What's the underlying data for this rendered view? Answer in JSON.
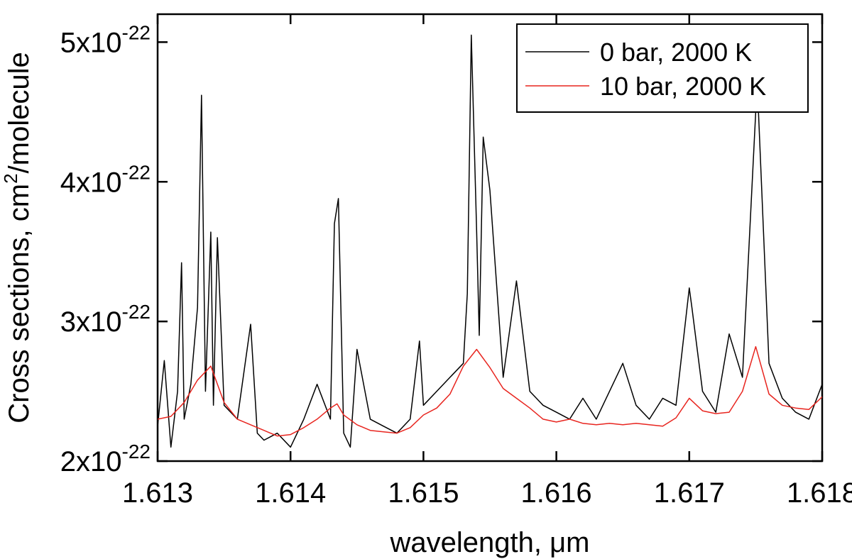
{
  "chart_data": {
    "type": "line",
    "xlabel": "wavelength, μm",
    "ylabel_parts": [
      "Cross sections, cm",
      "2",
      "/molecule"
    ],
    "xlim": [
      1.613,
      1.618
    ],
    "ylim": [
      2e-22,
      5.2e-22
    ],
    "x_ticks": [
      {
        "value": 1.613,
        "label": "1.613"
      },
      {
        "value": 1.614,
        "label": "1.614"
      },
      {
        "value": 1.615,
        "label": "1.615"
      },
      {
        "value": 1.616,
        "label": "1.616"
      },
      {
        "value": 1.617,
        "label": "1.617"
      },
      {
        "value": 1.618,
        "label": "1.618"
      }
    ],
    "y_ticks": [
      {
        "value": 2e-22,
        "mantissa": "2x10",
        "exponent": "-22"
      },
      {
        "value": 3e-22,
        "mantissa": "3x10",
        "exponent": "-22"
      },
      {
        "value": 4e-22,
        "mantissa": "4x10",
        "exponent": "-22"
      },
      {
        "value": 5e-22,
        "mantissa": "5x10",
        "exponent": "-22"
      }
    ],
    "grid": false,
    "legend_position": "top-right",
    "series": [
      {
        "name": "0 bar, 2000 K",
        "color": "#000000",
        "x": [
          1.613,
          1.61305,
          1.6131,
          1.61315,
          1.61318,
          1.6132,
          1.61325,
          1.6133,
          1.61333,
          1.61336,
          1.6134,
          1.61342,
          1.61345,
          1.6135,
          1.6136,
          1.6137,
          1.61375,
          1.6138,
          1.6139,
          1.614,
          1.6141,
          1.6142,
          1.6143,
          1.61433,
          1.61436,
          1.6144,
          1.61445,
          1.6145,
          1.6146,
          1.6147,
          1.6148,
          1.6149,
          1.61497,
          1.615,
          1.6151,
          1.6152,
          1.6153,
          1.61533,
          1.61536,
          1.6154,
          1.61542,
          1.61545,
          1.6155,
          1.6156,
          1.6157,
          1.6158,
          1.6159,
          1.616,
          1.6161,
          1.6162,
          1.6163,
          1.6164,
          1.6165,
          1.6166,
          1.6167,
          1.6168,
          1.6169,
          1.617,
          1.61702,
          1.6171,
          1.6172,
          1.6173,
          1.6174,
          1.6175,
          1.61752,
          1.6176,
          1.6177,
          1.6178,
          1.6179,
          1.618
        ],
        "y": [
          2.25e-22,
          2.72e-22,
          2.1e-22,
          2.5e-22,
          3.42e-22,
          2.3e-22,
          2.55e-22,
          3.1e-22,
          4.62e-22,
          2.5e-22,
          3.64e-22,
          2.4e-22,
          3.6e-22,
          2.4e-22,
          2.3e-22,
          2.98e-22,
          2.2e-22,
          2.15e-22,
          2.2e-22,
          2.1e-22,
          2.3e-22,
          2.55e-22,
          2.3e-22,
          3.7e-22,
          3.88e-22,
          2.2e-22,
          2.1e-22,
          2.8e-22,
          2.3e-22,
          2.25e-22,
          2.2e-22,
          2.3e-22,
          2.86e-22,
          2.4e-22,
          2.5e-22,
          2.6e-22,
          2.7e-22,
          3.2e-22,
          5.05e-22,
          3.65e-22,
          2.9e-22,
          4.32e-22,
          3.94e-22,
          2.6e-22,
          3.29e-22,
          2.5e-22,
          2.4e-22,
          2.35e-22,
          2.3e-22,
          2.45e-22,
          2.3e-22,
          2.5e-22,
          2.7e-22,
          2.4e-22,
          2.3e-22,
          2.45e-22,
          2.4e-22,
          3.24e-22,
          3.1e-22,
          2.5e-22,
          2.35e-22,
          2.91e-22,
          2.6e-22,
          4.5e-22,
          4.52e-22,
          2.7e-22,
          2.45e-22,
          2.35e-22,
          2.3e-22,
          2.55e-22
        ]
      },
      {
        "name": "10 bar, 2000 K",
        "color": "#e8251f",
        "x": [
          1.613,
          1.6131,
          1.6132,
          1.6133,
          1.6134,
          1.6135,
          1.6136,
          1.6137,
          1.6138,
          1.6139,
          1.614,
          1.6141,
          1.6142,
          1.6143,
          1.61435,
          1.6144,
          1.6145,
          1.6146,
          1.6147,
          1.6148,
          1.6149,
          1.615,
          1.6151,
          1.6152,
          1.6153,
          1.6154,
          1.6155,
          1.6156,
          1.6157,
          1.6158,
          1.6159,
          1.616,
          1.6161,
          1.6162,
          1.6163,
          1.6164,
          1.6165,
          1.6166,
          1.6167,
          1.6168,
          1.6169,
          1.617,
          1.6171,
          1.6172,
          1.6173,
          1.6174,
          1.6175,
          1.6176,
          1.6177,
          1.6178,
          1.6179,
          1.618
        ],
        "y": [
          2.3e-22,
          2.32e-22,
          2.42e-22,
          2.58e-22,
          2.68e-22,
          2.42e-22,
          2.3e-22,
          2.26e-22,
          2.22e-22,
          2.18e-22,
          2.19e-22,
          2.24e-22,
          2.3e-22,
          2.38e-22,
          2.41e-22,
          2.33e-22,
          2.26e-22,
          2.22e-22,
          2.21e-22,
          2.2e-22,
          2.24e-22,
          2.33e-22,
          2.38e-22,
          2.48e-22,
          2.68e-22,
          2.8e-22,
          2.67e-22,
          2.52e-22,
          2.45e-22,
          2.38e-22,
          2.3e-22,
          2.28e-22,
          2.3e-22,
          2.27e-22,
          2.26e-22,
          2.27e-22,
          2.26e-22,
          2.27e-22,
          2.26e-22,
          2.25e-22,
          2.31e-22,
          2.45e-22,
          2.36e-22,
          2.34e-22,
          2.35e-22,
          2.5e-22,
          2.82e-22,
          2.48e-22,
          2.4e-22,
          2.38e-22,
          2.37e-22,
          2.46e-22
        ]
      }
    ]
  }
}
